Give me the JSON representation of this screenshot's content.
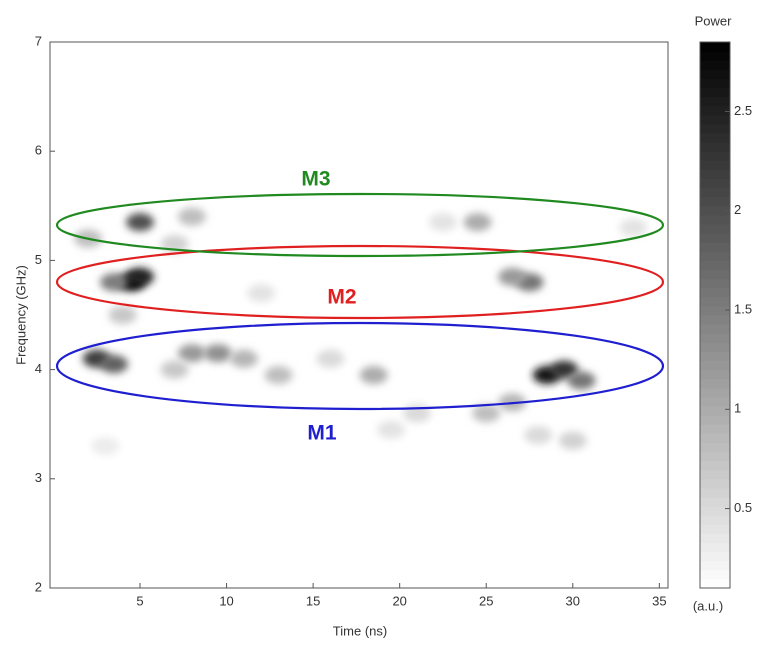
{
  "chart_data": {
    "type": "heatmap",
    "xlabel": "Time (ns)",
    "ylabel": "Frequency (GHz)",
    "colorbar_title": "Power",
    "colorbar_unit": "(a.u.)",
    "xlim": [
      -0.2,
      35.5
    ],
    "xticks": [
      5,
      10,
      15,
      20,
      25,
      30,
      35
    ],
    "ylim": [
      2,
      7
    ],
    "yticks": [
      2,
      3,
      4,
      5,
      6,
      7
    ],
    "clim": [
      0.1,
      2.85
    ],
    "cticks": [
      0.5,
      1,
      1.5,
      2,
      2.5
    ],
    "x": [
      2.5,
      3.5,
      4.5,
      5,
      3.5,
      5,
      2,
      8,
      9.5,
      11,
      13,
      7,
      18.5,
      16,
      21,
      24.5,
      26.5,
      27.5,
      26.5,
      28.5,
      29.5,
      30.5,
      30,
      8,
      7,
      4,
      3,
      19.5,
      25,
      28,
      33.5,
      12,
      22.5
    ],
    "y": [
      4.1,
      4.05,
      4.8,
      4.85,
      4.8,
      5.35,
      5.2,
      4.15,
      4.15,
      4.1,
      3.95,
      4,
      3.95,
      4.1,
      3.6,
      5.35,
      3.7,
      4.8,
      4.85,
      3.95,
      4.0,
      3.9,
      3.35,
      5.4,
      5.15,
      4.5,
      3.3,
      3.45,
      3.6,
      3.4,
      5.3,
      4.7,
      5.35
    ],
    "values": [
      2.2,
      1.8,
      2.8,
      2.5,
      1.5,
      2.0,
      0.8,
      1.2,
      1.3,
      0.9,
      0.8,
      0.7,
      1.0,
      0.5,
      0.5,
      1.0,
      0.9,
      1.6,
      1.2,
      2.6,
      2.3,
      1.6,
      0.6,
      0.8,
      0.6,
      0.7,
      0.3,
      0.4,
      0.8,
      0.5,
      0.4,
      0.4,
      0.4
    ],
    "annotations": [
      {
        "text": "M1",
        "color": "#1f1fd0"
      },
      {
        "text": "M2",
        "color": "#e02020"
      },
      {
        "text": "M3",
        "color": "#208a20"
      }
    ]
  }
}
